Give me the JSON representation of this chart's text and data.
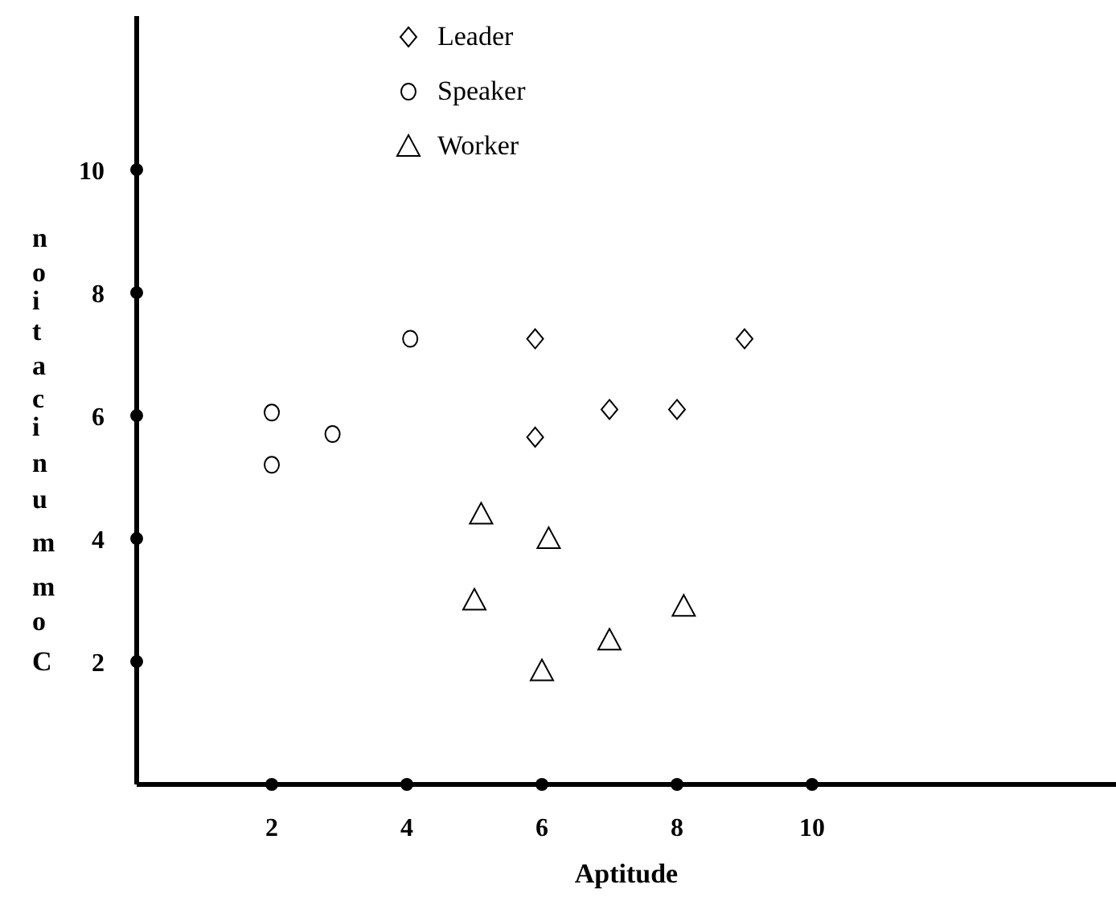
{
  "chart_data": {
    "type": "scatter",
    "xlabel": "Aptitude",
    "ylabel": "Communication",
    "xlim": [
      0,
      14.5
    ],
    "ylim": [
      0,
      12.5
    ],
    "xticks": [
      2,
      4,
      6,
      8,
      10
    ],
    "yticks": [
      2,
      4,
      6,
      8,
      10
    ],
    "grid": false,
    "legend": "top",
    "series": [
      {
        "name": "Leader",
        "color": "#000000",
        "marker": "diamond",
        "x": [
          5.9,
          7,
          8,
          5.9,
          9
        ],
        "values": [
          7.25,
          6.1,
          6.1,
          5.65,
          7.25
        ]
      },
      {
        "name": "Speaker",
        "color": "#000000",
        "marker": "circle",
        "x": [
          4.05,
          2,
          2.9,
          2
        ],
        "values": [
          7.25,
          6.05,
          5.7,
          5.2
        ]
      },
      {
        "name": "Worker",
        "color": "#000000",
        "marker": "triangle",
        "x": [
          5.1,
          6.1,
          5,
          6,
          7,
          8.1
        ],
        "values": [
          4.4,
          4,
          3,
          1.85,
          2.35,
          2.9
        ]
      }
    ]
  }
}
